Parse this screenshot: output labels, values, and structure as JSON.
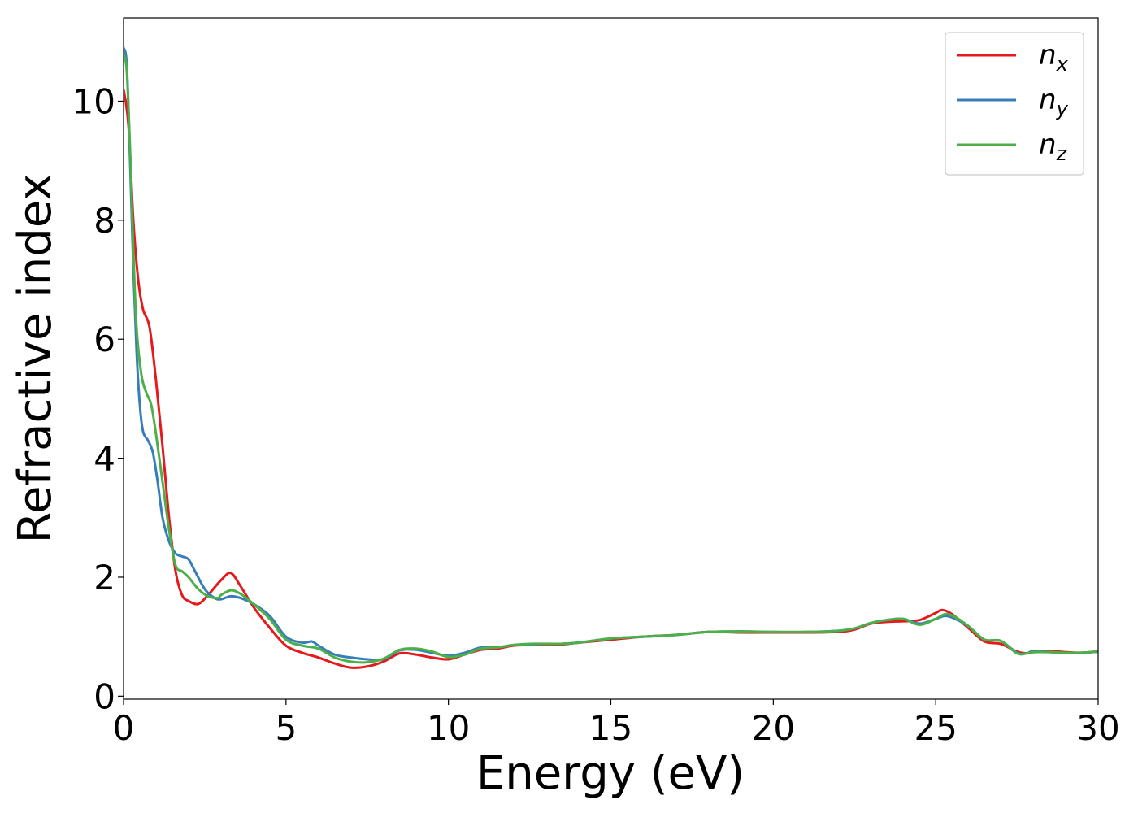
{
  "chart_data": {
    "type": "line",
    "xlabel": "Energy (eV)",
    "ylabel": "Refractive index",
    "xlim": [
      0,
      30
    ],
    "ylim": [
      -0.05,
      11.4
    ],
    "xticks": [
      0,
      5,
      10,
      15,
      20,
      25,
      30
    ],
    "xtick_labels": [
      "0",
      "5",
      "10",
      "15",
      "20",
      "25",
      "30"
    ],
    "yticks": [
      0,
      2,
      4,
      6,
      8,
      10
    ],
    "ytick_labels": [
      "0",
      "2",
      "4",
      "6",
      "8",
      "10"
    ],
    "grid": false,
    "legend_position": "top-right",
    "series": [
      {
        "name": "n",
        "subscript": "x",
        "color": "#e41a1c",
        "x": [
          0,
          0.15,
          0.3,
          0.45,
          0.6,
          0.8,
          1.0,
          1.2,
          1.4,
          1.6,
          1.8,
          2.0,
          2.3,
          2.6,
          3.0,
          3.3,
          3.6,
          4.0,
          4.5,
          5.0,
          5.5,
          6.0,
          6.5,
          7.0,
          7.5,
          8.0,
          8.5,
          9.0,
          9.5,
          10.0,
          10.5,
          11.0,
          11.5,
          12.0,
          12.5,
          13.0,
          13.5,
          14.0,
          15.0,
          16.0,
          17.0,
          18.0,
          19.0,
          20.0,
          21.0,
          22.0,
          22.5,
          23.0,
          23.5,
          24.0,
          24.5,
          25.0,
          25.2,
          25.5,
          26.0,
          26.5,
          27.0,
          27.5,
          27.8,
          28.0,
          28.5,
          29.0,
          29.5,
          30.0
        ],
        "y": [
          10.2,
          9.6,
          8.0,
          7.0,
          6.5,
          6.2,
          5.3,
          4.2,
          3.0,
          2.1,
          1.7,
          1.6,
          1.55,
          1.7,
          1.95,
          2.07,
          1.85,
          1.5,
          1.15,
          0.85,
          0.73,
          0.65,
          0.55,
          0.48,
          0.5,
          0.58,
          0.72,
          0.7,
          0.65,
          0.62,
          0.7,
          0.78,
          0.8,
          0.85,
          0.86,
          0.87,
          0.87,
          0.9,
          0.95,
          1.0,
          1.03,
          1.08,
          1.07,
          1.07,
          1.07,
          1.08,
          1.12,
          1.22,
          1.25,
          1.26,
          1.28,
          1.4,
          1.45,
          1.38,
          1.15,
          0.92,
          0.88,
          0.75,
          0.72,
          0.74,
          0.76,
          0.74,
          0.73,
          0.75
        ]
      },
      {
        "name": "n",
        "subscript": "y",
        "color": "#377eb8",
        "x": [
          0,
          0.1,
          0.2,
          0.3,
          0.4,
          0.5,
          0.6,
          0.75,
          0.9,
          1.05,
          1.2,
          1.4,
          1.6,
          1.8,
          2.0,
          2.2,
          2.5,
          2.8,
          3.0,
          3.3,
          3.6,
          4.0,
          4.5,
          5.0,
          5.5,
          5.8,
          6.0,
          6.5,
          7.0,
          7.5,
          8.0,
          8.5,
          9.0,
          9.5,
          10.0,
          10.5,
          11.0,
          11.5,
          12.0,
          12.5,
          13.0,
          13.5,
          14.0,
          15.0,
          16.0,
          17.0,
          18.0,
          19.0,
          20.0,
          21.0,
          22.0,
          22.5,
          23.0,
          23.5,
          24.0,
          24.5,
          25.0,
          25.3,
          25.6,
          26.0,
          26.5,
          27.0,
          27.5,
          27.8,
          28.0,
          28.5,
          29.0,
          29.5,
          30.0
        ],
        "y": [
          10.9,
          10.6,
          9.0,
          7.2,
          5.8,
          4.9,
          4.45,
          4.3,
          4.1,
          3.6,
          3.0,
          2.6,
          2.4,
          2.35,
          2.3,
          2.1,
          1.8,
          1.65,
          1.63,
          1.68,
          1.65,
          1.55,
          1.35,
          1.0,
          0.9,
          0.92,
          0.85,
          0.7,
          0.65,
          0.62,
          0.62,
          0.77,
          0.78,
          0.73,
          0.68,
          0.73,
          0.82,
          0.82,
          0.86,
          0.87,
          0.88,
          0.88,
          0.9,
          0.97,
          1.0,
          1.03,
          1.08,
          1.09,
          1.08,
          1.08,
          1.1,
          1.14,
          1.23,
          1.28,
          1.3,
          1.22,
          1.3,
          1.35,
          1.3,
          1.18,
          0.95,
          0.93,
          0.73,
          0.72,
          0.76,
          0.74,
          0.73,
          0.73,
          0.75
        ]
      },
      {
        "name": "n",
        "subscript": "z",
        "color": "#4daf4a",
        "x": [
          0,
          0.1,
          0.2,
          0.3,
          0.4,
          0.55,
          0.7,
          0.85,
          1.0,
          1.2,
          1.4,
          1.6,
          1.8,
          2.0,
          2.3,
          2.6,
          2.9,
          3.0,
          3.3,
          3.6,
          4.0,
          4.5,
          5.0,
          5.5,
          6.0,
          6.5,
          7.0,
          7.5,
          8.0,
          8.5,
          9.0,
          9.5,
          10.0,
          10.5,
          11.0,
          11.5,
          12.0,
          12.5,
          13.0,
          13.5,
          14.0,
          15.0,
          16.0,
          17.0,
          18.0,
          19.0,
          20.0,
          21.0,
          22.0,
          22.5,
          23.0,
          23.5,
          24.0,
          24.5,
          25.0,
          25.3,
          25.6,
          26.0,
          26.5,
          27.0,
          27.5,
          27.8,
          28.0,
          28.5,
          29.0,
          29.5,
          30.0
        ],
        "y": [
          10.8,
          10.5,
          9.2,
          7.5,
          6.2,
          5.4,
          5.1,
          4.9,
          4.4,
          3.6,
          2.8,
          2.2,
          2.1,
          2.0,
          1.8,
          1.68,
          1.65,
          1.7,
          1.78,
          1.72,
          1.55,
          1.3,
          0.95,
          0.85,
          0.8,
          0.65,
          0.58,
          0.57,
          0.63,
          0.78,
          0.8,
          0.75,
          0.66,
          0.7,
          0.8,
          0.82,
          0.86,
          0.88,
          0.88,
          0.88,
          0.9,
          0.97,
          1.0,
          1.03,
          1.08,
          1.09,
          1.08,
          1.08,
          1.1,
          1.14,
          1.23,
          1.28,
          1.3,
          1.2,
          1.3,
          1.38,
          1.33,
          1.18,
          0.95,
          0.93,
          0.72,
          0.72,
          0.74,
          0.74,
          0.73,
          0.73,
          0.75
        ]
      }
    ]
  }
}
